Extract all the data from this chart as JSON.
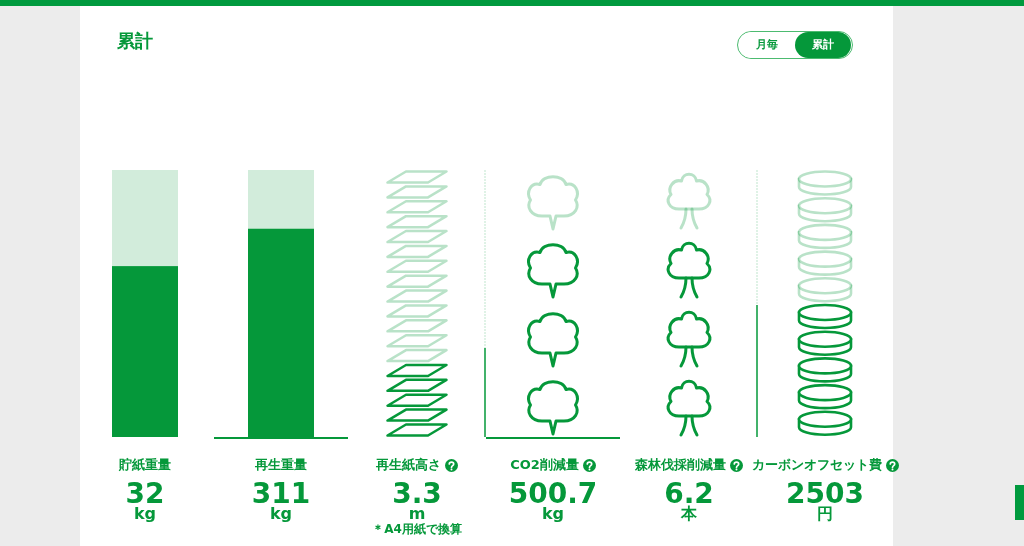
{
  "chart_data": {
    "type": "other",
    "title": "累計",
    "categories": [
      "貯紙重量",
      "再生重量",
      "再生紙高さ",
      "CO2削減量",
      "森林伐採削減量",
      "カーボンオフセット費"
    ],
    "values": [
      32,
      311,
      3.3,
      500.7,
      6.2,
      2503
    ],
    "data_labels": true,
    "color": "#05983a",
    "annotations": [
      "月毎",
      "累計",
      {
        "text": "kg",
        "x": "貯紙重量"
      },
      {
        "text": "kg",
        "x": "再生重量"
      },
      {
        "text": "m",
        "x": "再生紙高さ"
      },
      {
        "text": "＊A4用紙で換算",
        "x": "再生紙高さ"
      },
      {
        "text": "kg",
        "x": "CO2削減量"
      },
      {
        "text": "本",
        "x": "森林伐採削減量"
      },
      {
        "text": "円",
        "x": "カーボンオフセット費"
      }
    ]
  }
}
